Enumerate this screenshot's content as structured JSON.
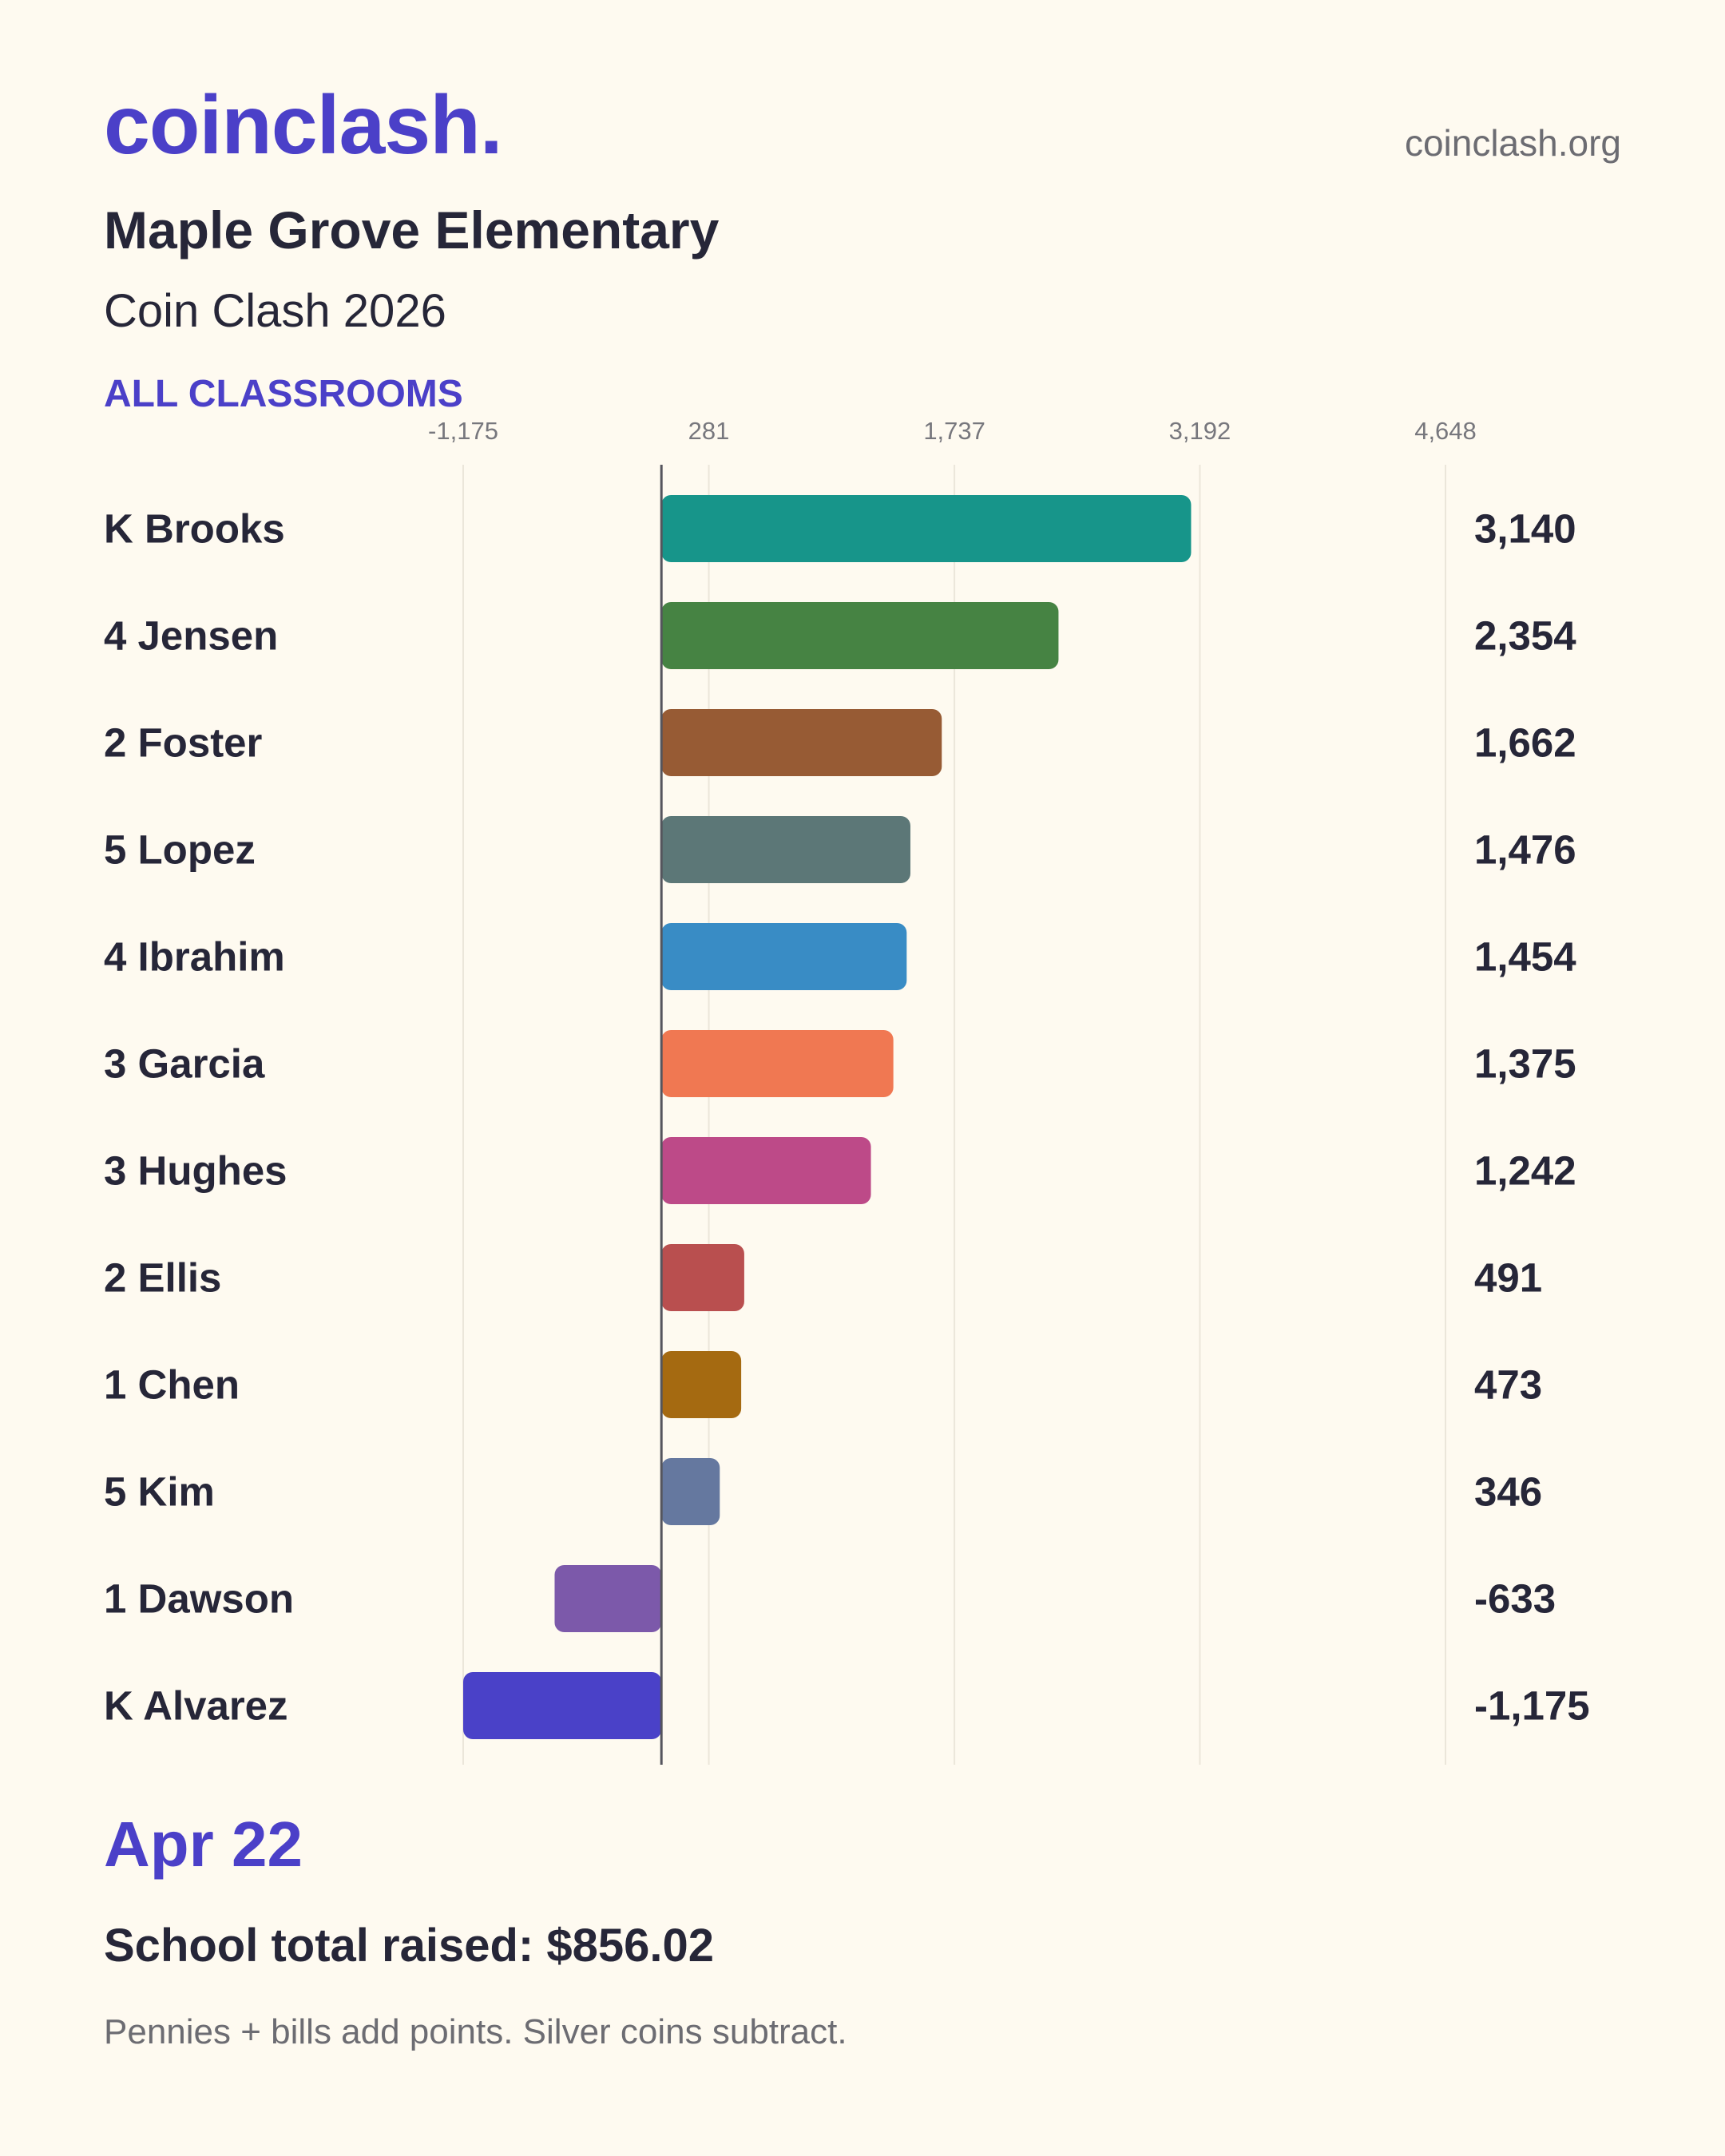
{
  "header": {
    "brand": "coinclash.",
    "site": "coinclash.org",
    "school": "Maple Grove Elementary",
    "event": "Coin Clash 2026",
    "filter": "ALL CLASSROOMS"
  },
  "footer": {
    "date": "Apr 22",
    "total": "School total raised: $856.02",
    "note": "Pennies + bills add points. Silver coins subtract."
  },
  "chart_data": {
    "type": "bar",
    "orientation": "horizontal",
    "title": "",
    "xlabel": "",
    "ylabel": "",
    "xlim": [
      -1175,
      4648
    ],
    "ticks": [
      -1175,
      281,
      1737,
      3192,
      4648
    ],
    "tick_labels": [
      "-1,175",
      "281",
      "1,737",
      "3,192",
      "4,648"
    ],
    "grid": true,
    "legend": "none",
    "categories": [
      "K Brooks",
      "4 Jensen",
      "2 Foster",
      "5 Lopez",
      "4 Ibrahim",
      "3 Garcia",
      "3 Hughes",
      "2 Ellis",
      "1 Chen",
      "5 Kim",
      "1 Dawson",
      "K Alvarez"
    ],
    "values": [
      3140,
      2354,
      1662,
      1476,
      1454,
      1375,
      1242,
      491,
      473,
      346,
      -633,
      -1175
    ],
    "value_labels": [
      "3,140",
      "2,354",
      "1,662",
      "1,476",
      "1,454",
      "1,375",
      "1,242",
      "491",
      "473",
      "346",
      "-633",
      "-1,175"
    ],
    "colors": [
      "#17958a",
      "#468343",
      "#975b34",
      "#5c7777",
      "#398cc5",
      "#f07852",
      "#bd4a88",
      "#b94f4f",
      "#a56a11",
      "#65789f",
      "#7c59aa",
      "#4a41c8"
    ]
  }
}
